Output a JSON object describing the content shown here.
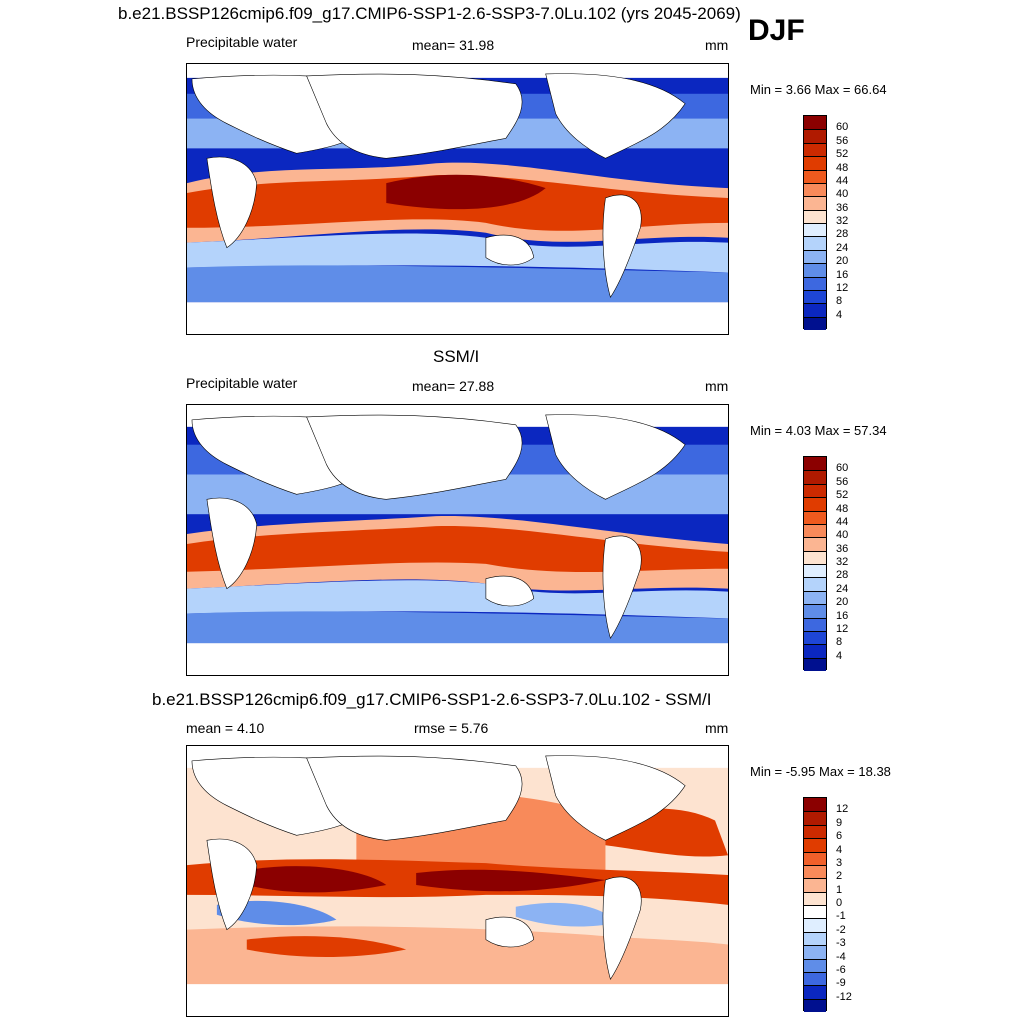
{
  "season": "DJF",
  "panels": [
    {
      "id": "model",
      "title": "b.e21.BSSP126cmip6.f09_g17.CMIP6-SSP1-2.6-SSP3-7.0Lu.102 (yrs 2045-2069)",
      "left_label": "Precipitable water",
      "center_label": "mean=  31.98",
      "units": "mm",
      "minmax": "Min =   3.66 Max =  66.64",
      "colorbar": {
        "ticks": [
          "60",
          "56",
          "52",
          "48",
          "44",
          "40",
          "36",
          "32",
          "28",
          "24",
          "20",
          "16",
          "12",
          "8",
          "4"
        ],
        "colors": [
          "#8b0000",
          "#b01a00",
          "#cc2a00",
          "#e03c00",
          "#ef5a1e",
          "#f88a5a",
          "#fbb592",
          "#fde3d0",
          "#dfeeff",
          "#b4d3fb",
          "#8cb3f3",
          "#5f8de8",
          "#3d68e0",
          "#1e46d6",
          "#0b27c0",
          "#00108f"
        ]
      }
    },
    {
      "id": "obs",
      "title": "SSM/I",
      "left_label": "Precipitable water",
      "center_label": "mean=  27.88",
      "units": "mm",
      "minmax": "Min =   4.03 Max =  57.34",
      "colorbar": {
        "ticks": [
          "60",
          "56",
          "52",
          "48",
          "44",
          "40",
          "36",
          "32",
          "28",
          "24",
          "20",
          "16",
          "12",
          "8",
          "4"
        ],
        "colors": [
          "#8b0000",
          "#b01a00",
          "#cc2a00",
          "#e03c00",
          "#ef5a1e",
          "#f88a5a",
          "#fbb592",
          "#fde3d0",
          "#dfeeff",
          "#b4d3fb",
          "#8cb3f3",
          "#5f8de8",
          "#3d68e0",
          "#1e46d6",
          "#0b27c0",
          "#00108f"
        ]
      }
    },
    {
      "id": "diff",
      "title": "b.e21.BSSP126cmip6.f09_g17.CMIP6-SSP1-2.6-SSP3-7.0Lu.102 - SSM/I",
      "left_label": "mean =   4.10",
      "center_label": "rmse =   5.76",
      "units": "mm",
      "minmax": "Min =  -5.95 Max =  18.38",
      "colorbar": {
        "ticks": [
          "12",
          "9",
          "6",
          "4",
          "3",
          "2",
          "1",
          "0",
          "-1",
          "-2",
          "-3",
          "-4",
          "-6",
          "-9",
          "-12"
        ],
        "colors": [
          "#8b0000",
          "#b01a00",
          "#cc2a00",
          "#e03c00",
          "#f0602a",
          "#f88a5a",
          "#fbb592",
          "#fde3d0",
          "#ffffff",
          "#dfeeff",
          "#b4d3fb",
          "#8cb3f3",
          "#5f8de8",
          "#3d68e0",
          "#0b27c0",
          "#00108f"
        ]
      }
    }
  ]
}
